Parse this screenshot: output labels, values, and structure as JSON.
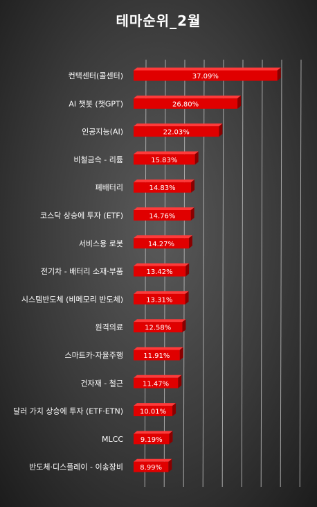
{
  "chart_data": {
    "type": "bar",
    "orientation": "horizontal",
    "title": "테마순위_2월",
    "categories": [
      "컨택센터(콜센터)",
      "AI 챗봇 (챗GPT)",
      "인공지능(AI)",
      "비철금속 - 리튬",
      "폐배터리",
      "코스닥 상승에 투자 (ETF)",
      "서비스용 로봇",
      "전기차 - 배터리 소재·부품",
      "시스템반도체 (비메모리 반도체)",
      "원격의료",
      "스마트카·자율주행",
      "건자재 - 철근",
      "달러 가치 상승에 투자 (ETF·ETN)",
      "MLCC",
      "반도체·디스플레이 - 이송장비"
    ],
    "values": [
      37.09,
      26.8,
      22.03,
      15.83,
      14.83,
      14.76,
      14.27,
      13.42,
      13.31,
      12.58,
      11.91,
      11.47,
      10.01,
      9.19,
      8.99
    ],
    "value_labels": [
      "37.09%",
      "26.80%",
      "22.03%",
      "15.83%",
      "14.83%",
      "14.76%",
      "14.27%",
      "13.42%",
      "13.31%",
      "12.58%",
      "11.91%",
      "11.47%",
      "10.01%",
      "9.19%",
      "8.99%"
    ],
    "xlim": [
      0,
      40
    ],
    "grid": true,
    "legend": "none",
    "bar_color": "#e00000",
    "bar_side_color": "#8a0000",
    "grid_color": "#bdbdbd"
  }
}
